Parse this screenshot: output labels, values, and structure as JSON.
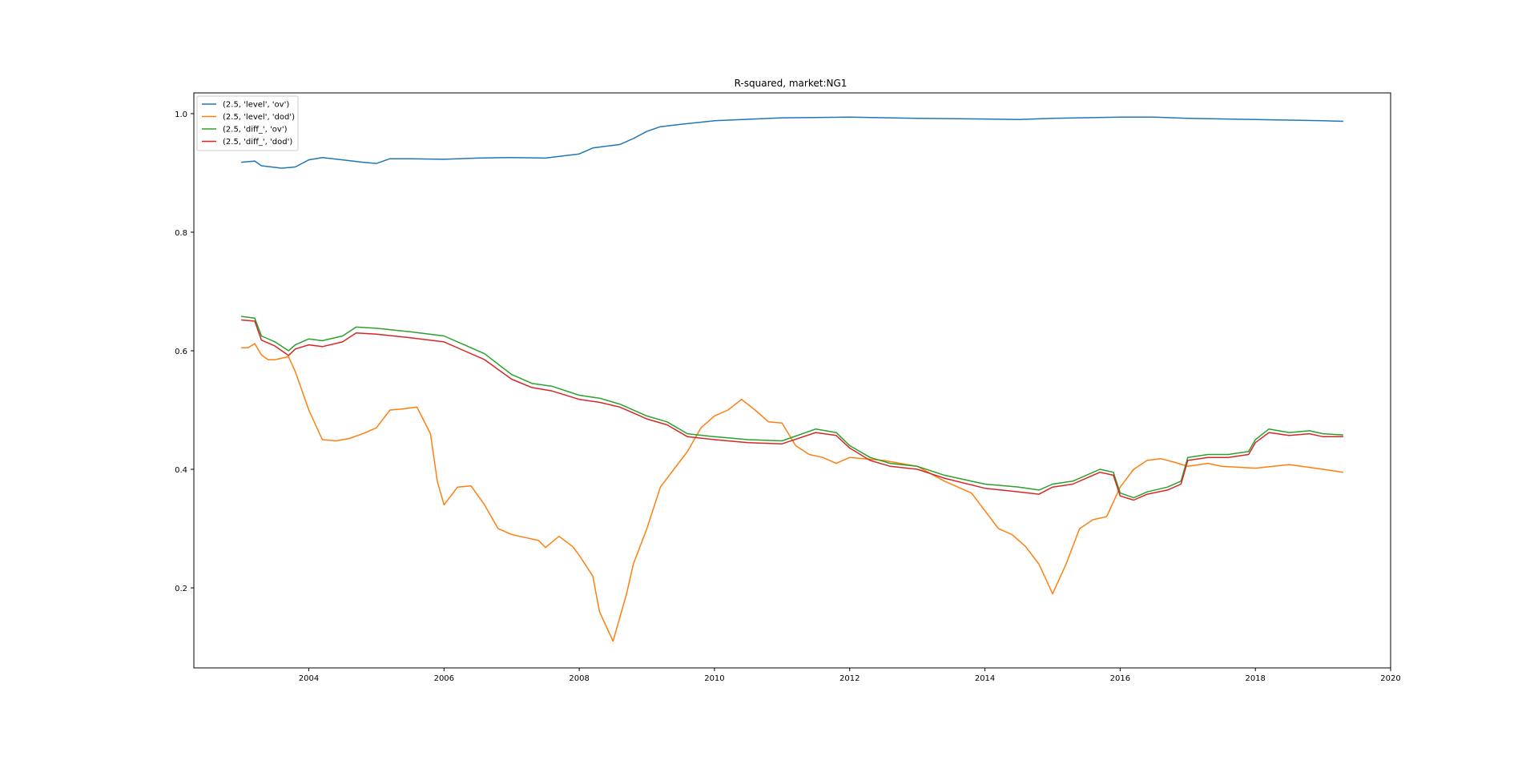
{
  "chart_data": {
    "type": "line",
    "title": "R-squared, market:NG1",
    "xlabel": "",
    "ylabel": "",
    "xlim": [
      2002.3,
      2020.0
    ],
    "ylim": [
      0.065,
      1.035
    ],
    "x_ticks": [
      2004,
      2006,
      2008,
      2010,
      2012,
      2014,
      2016,
      2018,
      2020
    ],
    "x_tick_labels": [
      "2004",
      "2006",
      "2008",
      "2010",
      "2012",
      "2014",
      "2016",
      "2018",
      "2020"
    ],
    "y_ticks": [
      0.2,
      0.4,
      0.6,
      0.8,
      1.0
    ],
    "y_tick_labels": [
      "0.2",
      "0.4",
      "0.6",
      "0.8",
      "1.0"
    ],
    "grid": false,
    "legend_position": "top-left",
    "series": [
      {
        "name": "(2.5, 'level', 'ov')",
        "color": "#1f77b4",
        "points": [
          [
            2003.0,
            0.918
          ],
          [
            2003.2,
            0.92
          ],
          [
            2003.3,
            0.912
          ],
          [
            2003.6,
            0.908
          ],
          [
            2003.8,
            0.91
          ],
          [
            2004.0,
            0.922
          ],
          [
            2004.2,
            0.926
          ],
          [
            2004.5,
            0.922
          ],
          [
            2004.8,
            0.918
          ],
          [
            2005.0,
            0.916
          ],
          [
            2005.2,
            0.924
          ],
          [
            2005.5,
            0.924
          ],
          [
            2006.0,
            0.923
          ],
          [
            2006.5,
            0.925
          ],
          [
            2007.0,
            0.926
          ],
          [
            2007.5,
            0.925
          ],
          [
            2008.0,
            0.932
          ],
          [
            2008.2,
            0.942
          ],
          [
            2008.6,
            0.948
          ],
          [
            2008.8,
            0.958
          ],
          [
            2009.0,
            0.97
          ],
          [
            2009.2,
            0.978
          ],
          [
            2009.5,
            0.982
          ],
          [
            2010.0,
            0.988
          ],
          [
            2011.0,
            0.993
          ],
          [
            2012.0,
            0.994
          ],
          [
            2013.0,
            0.992
          ],
          [
            2014.0,
            0.991
          ],
          [
            2014.5,
            0.99
          ],
          [
            2015.0,
            0.992
          ],
          [
            2016.0,
            0.994
          ],
          [
            2016.5,
            0.994
          ],
          [
            2017.0,
            0.992
          ],
          [
            2018.0,
            0.99
          ],
          [
            2019.0,
            0.988
          ],
          [
            2019.3,
            0.987
          ]
        ]
      },
      {
        "name": "(2.5, 'level', 'dod')",
        "color": "#ff7f0e",
        "points": [
          [
            2003.0,
            0.605
          ],
          [
            2003.1,
            0.605
          ],
          [
            2003.2,
            0.612
          ],
          [
            2003.3,
            0.593
          ],
          [
            2003.4,
            0.585
          ],
          [
            2003.5,
            0.585
          ],
          [
            2003.7,
            0.59
          ],
          [
            2003.8,
            0.565
          ],
          [
            2004.0,
            0.5
          ],
          [
            2004.2,
            0.45
          ],
          [
            2004.4,
            0.448
          ],
          [
            2004.6,
            0.452
          ],
          [
            2004.8,
            0.46
          ],
          [
            2005.0,
            0.47
          ],
          [
            2005.2,
            0.5
          ],
          [
            2005.4,
            0.502
          ],
          [
            2005.6,
            0.505
          ],
          [
            2005.8,
            0.46
          ],
          [
            2005.9,
            0.38
          ],
          [
            2006.0,
            0.34
          ],
          [
            2006.2,
            0.37
          ],
          [
            2006.4,
            0.372
          ],
          [
            2006.6,
            0.34
          ],
          [
            2006.8,
            0.3
          ],
          [
            2007.0,
            0.29
          ],
          [
            2007.2,
            0.285
          ],
          [
            2007.4,
            0.28
          ],
          [
            2007.5,
            0.268
          ],
          [
            2007.7,
            0.287
          ],
          [
            2007.9,
            0.27
          ],
          [
            2008.0,
            0.255
          ],
          [
            2008.2,
            0.22
          ],
          [
            2008.3,
            0.16
          ],
          [
            2008.5,
            0.11
          ],
          [
            2008.7,
            0.19
          ],
          [
            2008.8,
            0.24
          ],
          [
            2009.0,
            0.3
          ],
          [
            2009.2,
            0.37
          ],
          [
            2009.4,
            0.4
          ],
          [
            2009.6,
            0.43
          ],
          [
            2009.8,
            0.47
          ],
          [
            2010.0,
            0.49
          ],
          [
            2010.2,
            0.5
          ],
          [
            2010.4,
            0.518
          ],
          [
            2010.6,
            0.5
          ],
          [
            2010.8,
            0.48
          ],
          [
            2011.0,
            0.478
          ],
          [
            2011.2,
            0.44
          ],
          [
            2011.4,
            0.425
          ],
          [
            2011.6,
            0.42
          ],
          [
            2011.8,
            0.41
          ],
          [
            2012.0,
            0.42
          ],
          [
            2012.5,
            0.415
          ],
          [
            2013.0,
            0.405
          ],
          [
            2013.4,
            0.38
          ],
          [
            2013.6,
            0.37
          ],
          [
            2013.8,
            0.36
          ],
          [
            2014.0,
            0.33
          ],
          [
            2014.2,
            0.3
          ],
          [
            2014.4,
            0.29
          ],
          [
            2014.6,
            0.27
          ],
          [
            2014.8,
            0.24
          ],
          [
            2015.0,
            0.19
          ],
          [
            2015.2,
            0.24
          ],
          [
            2015.4,
            0.3
          ],
          [
            2015.6,
            0.315
          ],
          [
            2015.8,
            0.32
          ],
          [
            2016.0,
            0.37
          ],
          [
            2016.2,
            0.4
          ],
          [
            2016.4,
            0.415
          ],
          [
            2016.6,
            0.418
          ],
          [
            2016.8,
            0.412
          ],
          [
            2017.0,
            0.405
          ],
          [
            2017.3,
            0.41
          ],
          [
            2017.5,
            0.405
          ],
          [
            2018.0,
            0.402
          ],
          [
            2018.5,
            0.408
          ],
          [
            2019.0,
            0.4
          ],
          [
            2019.3,
            0.395
          ]
        ]
      },
      {
        "name": "(2.5, 'diff_', 'ov')",
        "color": "#2ca02c",
        "points": [
          [
            2003.0,
            0.658
          ],
          [
            2003.2,
            0.655
          ],
          [
            2003.3,
            0.625
          ],
          [
            2003.5,
            0.615
          ],
          [
            2003.7,
            0.6
          ],
          [
            2003.8,
            0.61
          ],
          [
            2004.0,
            0.62
          ],
          [
            2004.2,
            0.617
          ],
          [
            2004.5,
            0.625
          ],
          [
            2004.7,
            0.64
          ],
          [
            2005.0,
            0.638
          ],
          [
            2005.5,
            0.632
          ],
          [
            2006.0,
            0.625
          ],
          [
            2006.3,
            0.61
          ],
          [
            2006.6,
            0.595
          ],
          [
            2007.0,
            0.56
          ],
          [
            2007.3,
            0.545
          ],
          [
            2007.6,
            0.54
          ],
          [
            2008.0,
            0.525
          ],
          [
            2008.3,
            0.52
          ],
          [
            2008.6,
            0.51
          ],
          [
            2009.0,
            0.49
          ],
          [
            2009.3,
            0.48
          ],
          [
            2009.6,
            0.46
          ],
          [
            2010.0,
            0.455
          ],
          [
            2010.5,
            0.45
          ],
          [
            2011.0,
            0.448
          ],
          [
            2011.5,
            0.468
          ],
          [
            2011.8,
            0.462
          ],
          [
            2012.0,
            0.44
          ],
          [
            2012.3,
            0.42
          ],
          [
            2012.6,
            0.41
          ],
          [
            2013.0,
            0.405
          ],
          [
            2013.4,
            0.39
          ],
          [
            2014.0,
            0.375
          ],
          [
            2014.5,
            0.37
          ],
          [
            2014.8,
            0.365
          ],
          [
            2015.0,
            0.375
          ],
          [
            2015.3,
            0.38
          ],
          [
            2015.5,
            0.39
          ],
          [
            2015.7,
            0.4
          ],
          [
            2015.9,
            0.395
          ],
          [
            2016.0,
            0.36
          ],
          [
            2016.2,
            0.352
          ],
          [
            2016.4,
            0.362
          ],
          [
            2016.7,
            0.37
          ],
          [
            2016.9,
            0.38
          ],
          [
            2017.0,
            0.42
          ],
          [
            2017.3,
            0.425
          ],
          [
            2017.6,
            0.425
          ],
          [
            2017.9,
            0.43
          ],
          [
            2018.0,
            0.45
          ],
          [
            2018.2,
            0.468
          ],
          [
            2018.5,
            0.462
          ],
          [
            2018.8,
            0.465
          ],
          [
            2019.0,
            0.46
          ],
          [
            2019.3,
            0.458
          ]
        ]
      },
      {
        "name": "(2.5, 'diff_', 'dod')",
        "color": "#d62728",
        "points": [
          [
            2003.0,
            0.652
          ],
          [
            2003.2,
            0.65
          ],
          [
            2003.3,
            0.618
          ],
          [
            2003.5,
            0.608
          ],
          [
            2003.7,
            0.592
          ],
          [
            2003.8,
            0.603
          ],
          [
            2004.0,
            0.61
          ],
          [
            2004.2,
            0.607
          ],
          [
            2004.5,
            0.615
          ],
          [
            2004.7,
            0.63
          ],
          [
            2005.0,
            0.628
          ],
          [
            2005.5,
            0.622
          ],
          [
            2006.0,
            0.615
          ],
          [
            2006.3,
            0.6
          ],
          [
            2006.6,
            0.585
          ],
          [
            2007.0,
            0.552
          ],
          [
            2007.3,
            0.538
          ],
          [
            2007.6,
            0.532
          ],
          [
            2008.0,
            0.518
          ],
          [
            2008.3,
            0.513
          ],
          [
            2008.6,
            0.505
          ],
          [
            2009.0,
            0.485
          ],
          [
            2009.3,
            0.475
          ],
          [
            2009.6,
            0.455
          ],
          [
            2010.0,
            0.45
          ],
          [
            2010.5,
            0.445
          ],
          [
            2011.0,
            0.443
          ],
          [
            2011.5,
            0.462
          ],
          [
            2011.8,
            0.457
          ],
          [
            2012.0,
            0.436
          ],
          [
            2012.3,
            0.415
          ],
          [
            2012.6,
            0.405
          ],
          [
            2013.0,
            0.4
          ],
          [
            2013.4,
            0.385
          ],
          [
            2014.0,
            0.368
          ],
          [
            2014.5,
            0.362
          ],
          [
            2014.8,
            0.358
          ],
          [
            2015.0,
            0.37
          ],
          [
            2015.3,
            0.375
          ],
          [
            2015.5,
            0.385
          ],
          [
            2015.7,
            0.395
          ],
          [
            2015.9,
            0.39
          ],
          [
            2016.0,
            0.355
          ],
          [
            2016.2,
            0.348
          ],
          [
            2016.4,
            0.358
          ],
          [
            2016.7,
            0.365
          ],
          [
            2016.9,
            0.375
          ],
          [
            2017.0,
            0.415
          ],
          [
            2017.3,
            0.42
          ],
          [
            2017.6,
            0.42
          ],
          [
            2017.9,
            0.425
          ],
          [
            2018.0,
            0.445
          ],
          [
            2018.2,
            0.462
          ],
          [
            2018.5,
            0.457
          ],
          [
            2018.8,
            0.46
          ],
          [
            2019.0,
            0.455
          ],
          [
            2019.3,
            0.455
          ]
        ]
      }
    ]
  }
}
